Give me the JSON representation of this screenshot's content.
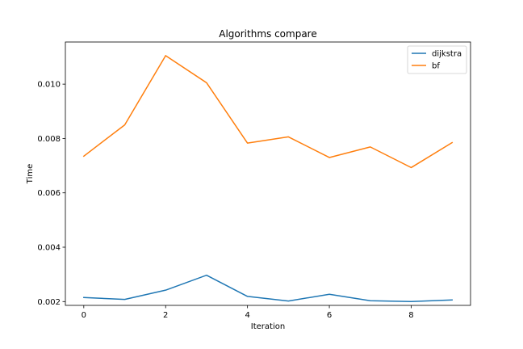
{
  "chart_data": {
    "type": "line",
    "title": "Algorithms compare",
    "xlabel": "Iteration",
    "ylabel": "Time",
    "x": [
      0,
      1,
      2,
      3,
      4,
      5,
      6,
      7,
      8,
      9
    ],
    "xlim": [
      -0.45,
      9.45
    ],
    "ylim": [
      0.00186,
      0.01155
    ],
    "xticks": [
      0,
      2,
      4,
      6,
      8
    ],
    "yticks": [
      0.002,
      0.004,
      0.006,
      0.008,
      0.01
    ],
    "ytick_labels": [
      "0.002",
      "0.004",
      "0.006",
      "0.008",
      "0.010"
    ],
    "grid": false,
    "legend_position": "top-right",
    "series": [
      {
        "name": "dijkstra",
        "color": "#1f77b4",
        "values": [
          0.00215,
          0.00208,
          0.00242,
          0.00297,
          0.00219,
          0.00202,
          0.00227,
          0.00203,
          0.002,
          0.00206
        ]
      },
      {
        "name": "bf",
        "color": "#ff7f0e",
        "values": [
          0.00735,
          0.0085,
          0.01105,
          0.01005,
          0.00783,
          0.00806,
          0.0073,
          0.00769,
          0.00693,
          0.00785
        ]
      }
    ]
  }
}
